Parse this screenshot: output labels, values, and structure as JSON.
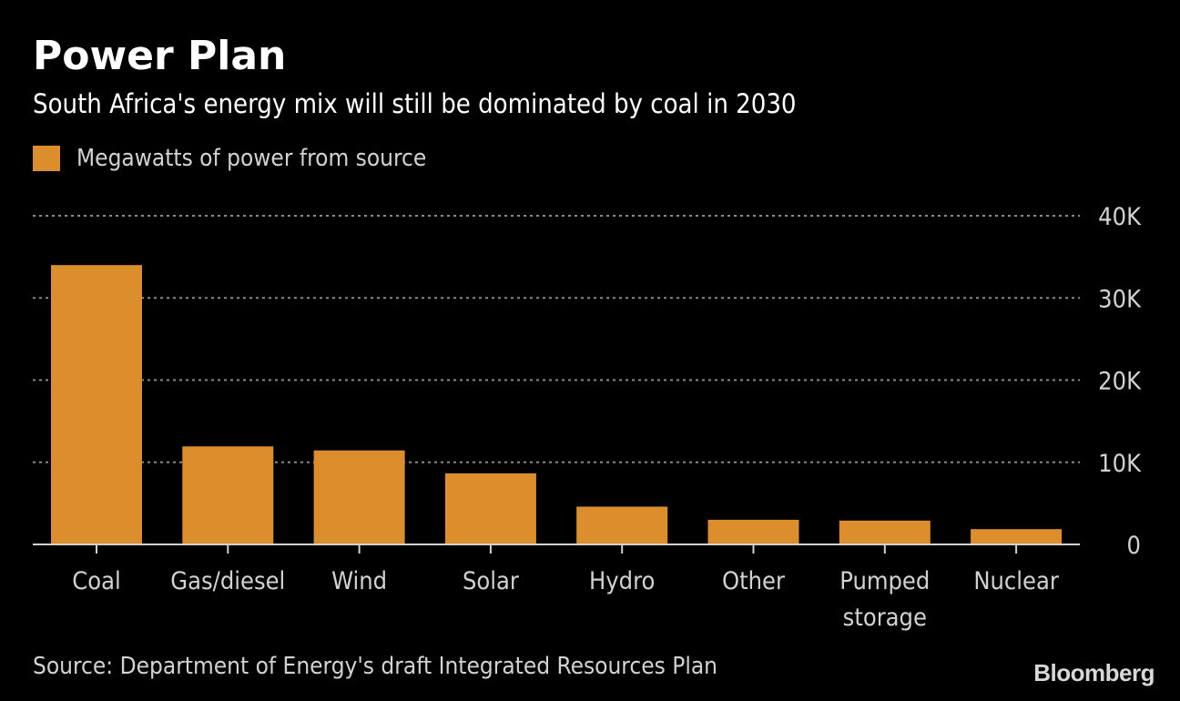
{
  "header": {
    "title": "Power Plan",
    "subtitle": "South Africa's energy mix will still be dominated by coal in 2030"
  },
  "footer": {
    "source": "Source: Department of Energy's draft Integrated Resources Plan",
    "brand": "Bloomberg"
  },
  "colors": {
    "bar": "#dd8e2c",
    "background": "#000000",
    "grid": "#8a8a8a",
    "axis": "#d2d2d2",
    "text_muted": "#d2d2d2"
  },
  "chart_data": {
    "type": "bar",
    "title": "Power Plan",
    "subtitle": "South Africa's energy mix will still be dominated by coal in 2030",
    "xlabel": "",
    "ylabel": "",
    "categories": [
      "Coal",
      "Gas/diesel",
      "Wind",
      "Solar",
      "Hydro",
      "Other",
      "Pumped storage",
      "Nuclear"
    ],
    "category_lines": [
      [
        "Coal"
      ],
      [
        "Gas/diesel"
      ],
      [
        "Wind"
      ],
      [
        "Solar"
      ],
      [
        "Hydro"
      ],
      [
        "Other"
      ],
      [
        "Pumped",
        "storage"
      ],
      [
        "Nuclear"
      ]
    ],
    "series": [
      {
        "name": "Megawatts of power from source",
        "values": [
          34000,
          11930,
          11440,
          8650,
          4600,
          3000,
          2900,
          1860
        ]
      }
    ],
    "ylim": [
      0,
      40000
    ],
    "yticks": [
      0,
      10000,
      20000,
      30000,
      40000
    ],
    "ytick_labels": [
      "0",
      "10K",
      "20K",
      "30K",
      "40K"
    ],
    "grid": true,
    "axis_side": "right",
    "legend_position": "top-left"
  }
}
